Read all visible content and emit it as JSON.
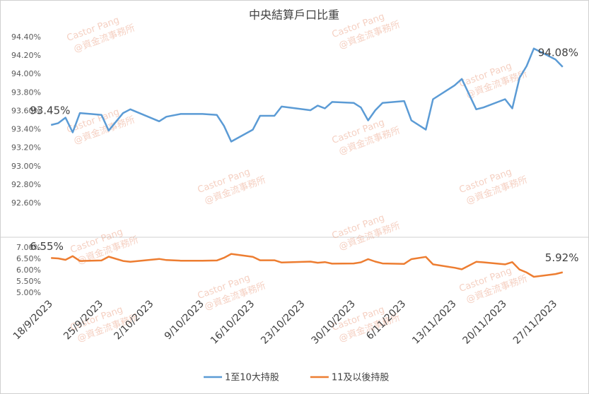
{
  "chart_data": {
    "type": "line",
    "title": "中央結算戶口比重",
    "watermark": [
      "Castor Pang",
      "@資金流事務所"
    ],
    "x": [
      "18/9/2023",
      "19/9/2023",
      "20/9/2023",
      "21/9/2023",
      "22/9/2023",
      "25/9/2023",
      "26/9/2023",
      "28/9/2023",
      "29/9/2023",
      "3/10/2023",
      "4/10/2023",
      "6/10/2023",
      "9/10/2023",
      "11/10/2023",
      "12/10/2023",
      "13/10/2023",
      "16/10/2023",
      "17/10/2023",
      "19/10/2023",
      "20/10/2023",
      "24/10/2023",
      "25/10/2023",
      "26/10/2023",
      "27/10/2023",
      "30/10/2023",
      "31/10/2023",
      "1/11/2023",
      "2/11/2023",
      "3/11/2023",
      "6/11/2023",
      "7/11/2023",
      "9/11/2023",
      "10/11/2023",
      "13/11/2023",
      "14/11/2023",
      "16/11/2023",
      "17/11/2023",
      "20/11/2023",
      "21/11/2023",
      "22/11/2023",
      "23/11/2023",
      "24/11/2023",
      "27/11/2023",
      "28/11/2023"
    ],
    "xlim": [
      "17/9/2023",
      "29/11/2023"
    ],
    "xticks": [
      "18/9/2023",
      "25/9/2023",
      "2/10/2023",
      "9/10/2023",
      "16/10/2023",
      "23/10/2023",
      "30/10/2023",
      "6/11/2023",
      "13/11/2023",
      "20/11/2023",
      "27/11/2023"
    ],
    "grid": false,
    "legend": "bottom",
    "series": [
      {
        "name": "1至10大持股",
        "color": "#5b9bd5",
        "values": [
          93.45,
          93.47,
          93.53,
          93.37,
          93.58,
          93.56,
          93.39,
          93.58,
          93.62,
          93.49,
          93.54,
          93.57,
          93.57,
          93.56,
          93.44,
          93.27,
          93.4,
          93.55,
          93.55,
          93.65,
          93.61,
          93.66,
          93.63,
          93.7,
          93.69,
          93.64,
          93.5,
          93.61,
          93.69,
          93.71,
          93.5,
          93.4,
          93.73,
          93.88,
          93.95,
          93.62,
          93.64,
          93.73,
          93.63,
          93.96,
          94.09,
          94.28,
          94.16,
          94.08
        ],
        "value_labels": [
          "93.45%",
          null,
          null,
          null,
          null,
          null,
          null,
          null,
          null,
          null,
          null,
          null,
          null,
          null,
          null,
          null,
          null,
          null,
          null,
          null,
          null,
          null,
          null,
          null,
          null,
          null,
          null,
          null,
          null,
          null,
          null,
          null,
          null,
          null,
          null,
          null,
          null,
          null,
          null,
          null,
          null,
          null,
          null,
          "94.08%"
        ],
        "ylim": [
          92.6,
          94.4
        ],
        "yticks": [
          {
            "value": 92.6,
            "label": "92.60%"
          },
          {
            "value": 92.8,
            "label": "92.80%"
          },
          {
            "value": 93.0,
            "label": "93.00%"
          },
          {
            "value": 93.2,
            "label": "93.20%"
          },
          {
            "value": 93.4,
            "label": "93.40%"
          },
          {
            "value": 93.6,
            "label": "93.60%"
          },
          {
            "value": 93.8,
            "label": "93.80%"
          },
          {
            "value": 94.0,
            "label": "94.00%"
          },
          {
            "value": 94.2,
            "label": "94.20%"
          },
          {
            "value": 94.4,
            "label": "94.40%"
          }
        ]
      },
      {
        "name": "11及以後持股",
        "color": "#ed7d31",
        "values": [
          6.55,
          6.53,
          6.47,
          6.63,
          6.42,
          6.44,
          6.61,
          6.42,
          6.38,
          6.51,
          6.46,
          6.43,
          6.43,
          6.44,
          6.56,
          6.73,
          6.6,
          6.45,
          6.45,
          6.35,
          6.39,
          6.34,
          6.37,
          6.3,
          6.31,
          6.36,
          6.5,
          6.39,
          6.31,
          6.29,
          6.5,
          6.6,
          6.27,
          6.12,
          6.05,
          6.38,
          6.36,
          6.27,
          6.37,
          6.04,
          5.91,
          5.72,
          5.84,
          5.92
        ],
        "value_labels": [
          "6.55%",
          null,
          null,
          null,
          null,
          null,
          null,
          null,
          null,
          null,
          null,
          null,
          null,
          null,
          null,
          null,
          null,
          null,
          null,
          null,
          null,
          null,
          null,
          null,
          null,
          null,
          null,
          null,
          null,
          null,
          null,
          null,
          null,
          null,
          null,
          null,
          null,
          null,
          null,
          null,
          null,
          null,
          null,
          "5.92%"
        ],
        "ylim": [
          5.0,
          7.0
        ],
        "yticks": [
          {
            "value": 5.0,
            "label": "5.00%"
          },
          {
            "value": 5.5,
            "label": "5.50%"
          },
          {
            "value": 6.0,
            "label": "6.00%"
          },
          {
            "value": 6.5,
            "label": "6.50%"
          },
          {
            "value": 7.0,
            "label": "7.00%"
          }
        ]
      }
    ]
  }
}
